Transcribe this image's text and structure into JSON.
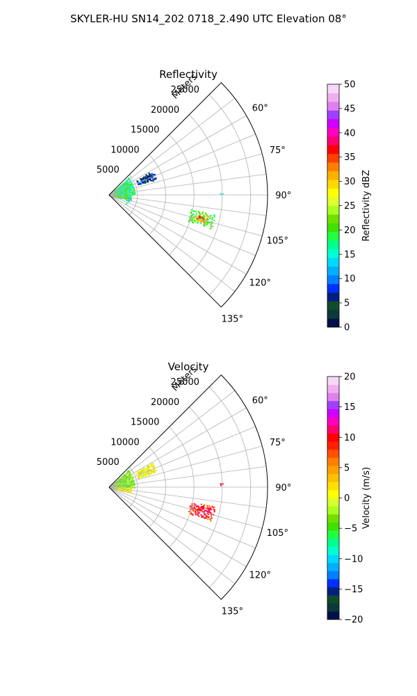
{
  "figure": {
    "suptitle": "SKYLER-HU  SN14_202  0718_2.490 UTC Elevation 08°"
  },
  "chart_data": [
    {
      "type": "heatmap",
      "projection": "polar-sector",
      "title": "Reflectivity",
      "range_label": "Meters",
      "range_ticks": [
        5000,
        10000,
        15000,
        20000,
        25000
      ],
      "rmax": 28000,
      "azimuth_range_deg": [
        45,
        135
      ],
      "azimuth_ticks": [
        "60°",
        "75°",
        "90°",
        "105°",
        "120°",
        "135°"
      ],
      "azimuth_tick_values": [
        60,
        75,
        90,
        105,
        120,
        135
      ],
      "grid": true,
      "colorbar": {
        "label": "Reflectivity dBZ",
        "min": 0,
        "max": 50,
        "ticks": [
          "0",
          "5",
          "10",
          "15",
          "20",
          "25",
          "30",
          "35",
          "40",
          "45",
          "50"
        ],
        "tick_values": [
          0,
          5,
          10,
          15,
          20,
          25,
          30,
          35,
          40,
          45,
          50
        ],
        "colors": [
          "#00104a",
          "#0a3a3a",
          "#0f4d2a",
          "#002080",
          "#0030ff",
          "#0080ff",
          "#00b0ff",
          "#00d8ff",
          "#00ffd0",
          "#00ff90",
          "#20ff40",
          "#40e000",
          "#70e000",
          "#a8ff20",
          "#e0ff30",
          "#ffff00",
          "#ffd800",
          "#ffb000",
          "#ff8000",
          "#ff4000",
          "#ff0000",
          "#ff0070",
          "#ff00c0",
          "#d000ff",
          "#a040ff",
          "#e080f0",
          "#f0b0f0",
          "#f8d8f8"
        ]
      },
      "echo_regions": [
        {
          "az": [
            47,
            89
          ],
          "r": [
            0,
            4500
          ],
          "value": 18,
          "density": 0.55
        },
        {
          "az": [
            91,
            103
          ],
          "r": [
            0,
            3800
          ],
          "value": 20,
          "density": 0.6
        },
        {
          "az": [
            62,
            70
          ],
          "r": [
            5200,
            8600
          ],
          "value": 8,
          "density": 0.6
        },
        {
          "az": [
            60,
            71
          ],
          "r": [
            6000,
            8000
          ],
          "value": 3,
          "density": 0.35
        },
        {
          "az": [
            93,
            115
          ],
          "r": [
            3000,
            3600
          ],
          "value": 15,
          "density": 0.15
        },
        {
          "az": [
            100,
            108
          ],
          "r": [
            14500,
            19000
          ],
          "value": 20,
          "density": 0.65
        },
        {
          "az": [
            102,
            106
          ],
          "r": [
            15500,
            18000
          ],
          "value": 31,
          "density": 0.5
        },
        {
          "az": [
            102.5,
            105
          ],
          "r": [
            16000,
            17200
          ],
          "value": 36,
          "density": 0.6
        },
        {
          "az": [
            87.5,
            88.5
          ],
          "r": [
            19600,
            20100
          ],
          "value": 14,
          "density": 0.9
        }
      ]
    },
    {
      "type": "heatmap",
      "projection": "polar-sector",
      "title": "Velocity",
      "range_label": "Meters",
      "range_ticks": [
        5000,
        10000,
        15000,
        20000,
        25000
      ],
      "rmax": 28000,
      "azimuth_range_deg": [
        45,
        135
      ],
      "azimuth_ticks": [
        "60°",
        "75°",
        "90°",
        "105°",
        "120°",
        "135°"
      ],
      "azimuth_tick_values": [
        60,
        75,
        90,
        105,
        120,
        135
      ],
      "grid": true,
      "colorbar": {
        "label": "Velocity (m/s)",
        "min": -20,
        "max": 20,
        "ticks": [
          "−20",
          "−15",
          "−10",
          "−5",
          "0",
          "5",
          "10",
          "15",
          "20"
        ],
        "tick_values": [
          -20,
          -15,
          -10,
          -5,
          0,
          5,
          10,
          15,
          20
        ],
        "colors": [
          "#00104a",
          "#0a3a3a",
          "#0f4d2a",
          "#002080",
          "#0030ff",
          "#0080ff",
          "#00b0ff",
          "#00d8ff",
          "#00ffd0",
          "#00ff90",
          "#20ff40",
          "#40e000",
          "#70e000",
          "#a8ff20",
          "#d8ff30",
          "#ffff00",
          "#ffe000",
          "#ffc000",
          "#ffa000",
          "#ff8000",
          "#ff5000",
          "#ff2000",
          "#ff0000",
          "#ff0070",
          "#ff00c0",
          "#d000ff",
          "#a040ff",
          "#e080f0",
          "#f0b0f0",
          "#f8d8f8"
        ]
      },
      "echo_regions": [
        {
          "az": [
            47,
            89
          ],
          "r": [
            0,
            4500
          ],
          "value": -3,
          "density": 0.55
        },
        {
          "az": [
            91,
            103
          ],
          "r": [
            0,
            3800
          ],
          "value": 0.5,
          "density": 0.6
        },
        {
          "az": [
            60,
            71
          ],
          "r": [
            5200,
            8600
          ],
          "value": 0.5,
          "density": 0.6
        },
        {
          "az": [
            100,
            108
          ],
          "r": [
            14500,
            19000
          ],
          "value": 9,
          "density": 0.65
        },
        {
          "az": [
            102,
            106
          ],
          "r": [
            15500,
            18000
          ],
          "value": 11,
          "density": 0.5
        },
        {
          "az": [
            87.5,
            88.5
          ],
          "r": [
            19600,
            20100
          ],
          "value": 11,
          "density": 0.9
        }
      ]
    }
  ]
}
